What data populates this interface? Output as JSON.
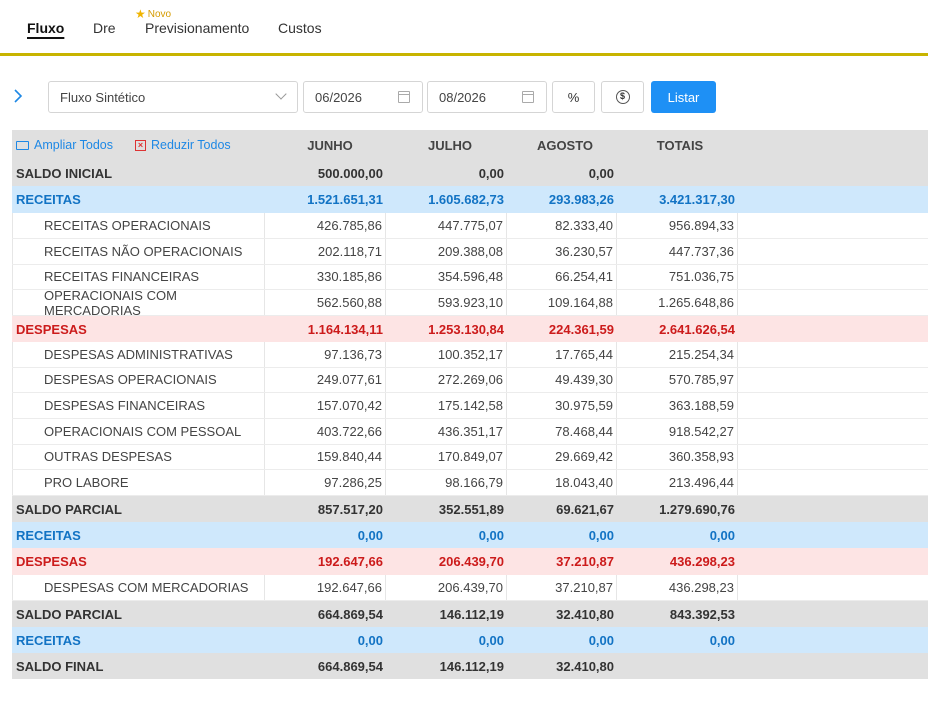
{
  "tabs": [
    {
      "label": "Fluxo"
    },
    {
      "label": "Dre"
    },
    {
      "label": "Previsionamento"
    },
    {
      "label": "Custos"
    }
  ],
  "new_badge": "Novo",
  "toolbar": {
    "report_type": "Fluxo Sintético",
    "date_from": "06/2026",
    "date_to": "08/2026",
    "percent_label": "%",
    "list_label": "Listar"
  },
  "table": {
    "expand_all": "Ampliar Todos",
    "collapse_all": "Reduzir Todos",
    "columns": [
      "JUNHO",
      "JULHO",
      "AGOSTO",
      "TOTAIS"
    ],
    "rows": [
      {
        "label": "SALDO INICIAL",
        "style": "gray",
        "values": [
          "500.000,00",
          "0,00",
          "0,00",
          ""
        ]
      },
      {
        "label": "RECEITAS",
        "style": "blue",
        "values": [
          "1.521.651,31",
          "1.605.682,73",
          "293.983,26",
          "3.421.317,30"
        ]
      },
      {
        "label": "RECEITAS OPERACIONAIS",
        "style": "sub",
        "values": [
          "426.785,86",
          "447.775,07",
          "82.333,40",
          "956.894,33"
        ]
      },
      {
        "label": "RECEITAS NÃO OPERACIONAIS",
        "style": "sub",
        "values": [
          "202.118,71",
          "209.388,08",
          "36.230,57",
          "447.737,36"
        ]
      },
      {
        "label": "RECEITAS FINANCEIRAS",
        "style": "sub",
        "values": [
          "330.185,86",
          "354.596,48",
          "66.254,41",
          "751.036,75"
        ]
      },
      {
        "label": "OPERACIONAIS COM MERCADORIAS",
        "style": "sub",
        "values": [
          "562.560,88",
          "593.923,10",
          "109.164,88",
          "1.265.648,86"
        ]
      },
      {
        "label": "DESPESAS",
        "style": "red",
        "values": [
          "1.164.134,11",
          "1.253.130,84",
          "224.361,59",
          "2.641.626,54"
        ]
      },
      {
        "label": "DESPESAS ADMINISTRATIVAS",
        "style": "sub",
        "values": [
          "97.136,73",
          "100.352,17",
          "17.765,44",
          "215.254,34"
        ]
      },
      {
        "label": "DESPESAS OPERACIONAIS",
        "style": "sub",
        "values": [
          "249.077,61",
          "272.269,06",
          "49.439,30",
          "570.785,97"
        ]
      },
      {
        "label": "DESPESAS FINANCEIRAS",
        "style": "sub",
        "values": [
          "157.070,42",
          "175.142,58",
          "30.975,59",
          "363.188,59"
        ]
      },
      {
        "label": "OPERACIONAIS COM PESSOAL",
        "style": "sub",
        "values": [
          "403.722,66",
          "436.351,17",
          "78.468,44",
          "918.542,27"
        ]
      },
      {
        "label": "OUTRAS DESPESAS",
        "style": "sub",
        "values": [
          "159.840,44",
          "170.849,07",
          "29.669,42",
          "360.358,93"
        ]
      },
      {
        "label": "PRO LABORE",
        "style": "sub",
        "values": [
          "97.286,25",
          "98.166,79",
          "18.043,40",
          "213.496,44"
        ]
      },
      {
        "label": "SALDO PARCIAL",
        "style": "gray",
        "values": [
          "857.517,20",
          "352.551,89",
          "69.621,67",
          "1.279.690,76"
        ]
      },
      {
        "label": "RECEITAS",
        "style": "blue",
        "values": [
          "0,00",
          "0,00",
          "0,00",
          "0,00"
        ]
      },
      {
        "label": "DESPESAS",
        "style": "red",
        "values": [
          "192.647,66",
          "206.439,70",
          "37.210,87",
          "436.298,23"
        ]
      },
      {
        "label": "DESPESAS COM MERCADORIAS",
        "style": "sub",
        "values": [
          "192.647,66",
          "206.439,70",
          "37.210,87",
          "436.298,23"
        ]
      },
      {
        "label": "SALDO PARCIAL",
        "style": "gray",
        "values": [
          "664.869,54",
          "146.112,19",
          "32.410,80",
          "843.392,53"
        ]
      },
      {
        "label": "RECEITAS",
        "style": "blue",
        "values": [
          "0,00",
          "0,00",
          "0,00",
          "0,00"
        ]
      },
      {
        "label": "SALDO FINAL",
        "style": "gray",
        "values": [
          "664.869,54",
          "146.112,19",
          "32.410,80",
          ""
        ]
      }
    ]
  },
  "colors": {
    "accent": "#1e90f5",
    "tab_underline": "#c8b400",
    "receitas": "#1273c4",
    "despesas": "#cc1b1b"
  }
}
